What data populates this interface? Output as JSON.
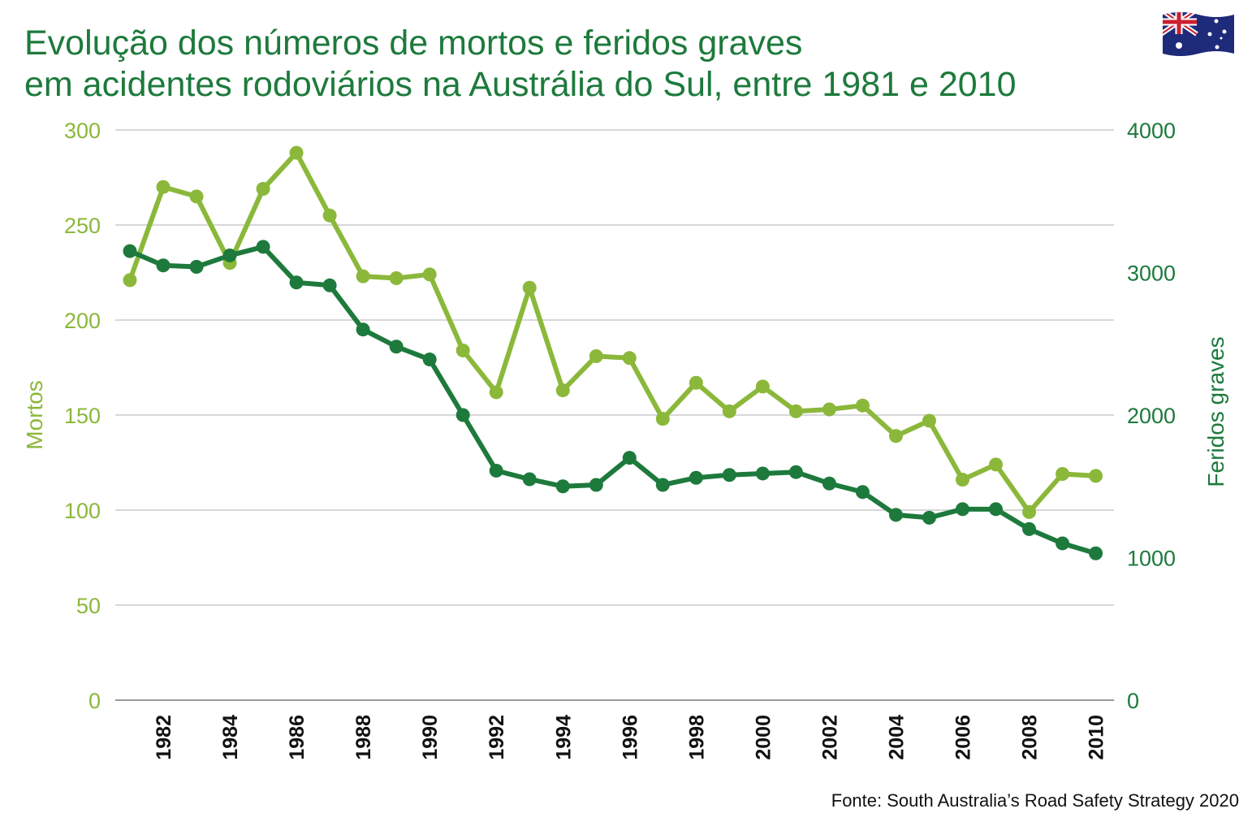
{
  "title_line1": "Evolução dos números de mortos e feridos graves",
  "title_line2": "em acidentes rodoviários na Austrália do Sul, entre 1981 e 2010",
  "source": "Fonte: South Australia’s Road Safety Strategy 2020",
  "flag_icon": "australia-flag-icon",
  "colors": {
    "mortos": "#8bb83a",
    "feridos": "#1d7a3c",
    "title": "#1d7a3c",
    "grid": "#cccccc"
  },
  "chart_data": {
    "type": "line",
    "x": [
      1981,
      1982,
      1983,
      1984,
      1985,
      1986,
      1987,
      1988,
      1989,
      1990,
      1991,
      1992,
      1993,
      1994,
      1995,
      1996,
      1997,
      1998,
      1999,
      2000,
      2001,
      2002,
      2003,
      2004,
      2005,
      2006,
      2007,
      2008,
      2009,
      2010
    ],
    "x_tick_labels": [
      "1982",
      "1984",
      "1986",
      "1988",
      "1990",
      "1992",
      "1994",
      "1996",
      "1998",
      "2000",
      "2002",
      "2004",
      "2006",
      "2008",
      "2010"
    ],
    "series": [
      {
        "name": "Mortos",
        "axis": "left",
        "values": [
          221,
          270,
          265,
          230,
          269,
          288,
          255,
          223,
          222,
          224,
          184,
          162,
          217,
          163,
          181,
          180,
          148,
          167,
          152,
          165,
          152,
          153,
          155,
          139,
          147,
          116,
          124,
          99,
          119,
          118
        ]
      },
      {
        "name": "Feridos graves",
        "axis": "right",
        "values": [
          3150,
          3050,
          3040,
          3120,
          3180,
          2930,
          2910,
          2600,
          2480,
          2390,
          2000,
          1610,
          1550,
          1500,
          1510,
          1700,
          1510,
          1560,
          1580,
          1590,
          1600,
          1520,
          1460,
          1300,
          1280,
          1340,
          1340,
          1200,
          1100,
          1030
        ]
      }
    ],
    "ylabel_left": "Mortos",
    "ylabel_right": "Feridos graves",
    "ylim_left": [
      0,
      300
    ],
    "ylim_right": [
      0,
      4000
    ],
    "yticks_left": [
      "0",
      "50",
      "100",
      "150",
      "200",
      "250",
      "300"
    ],
    "yticks_right": [
      "0",
      "1000",
      "2000",
      "3000",
      "4000"
    ],
    "grid": true
  }
}
